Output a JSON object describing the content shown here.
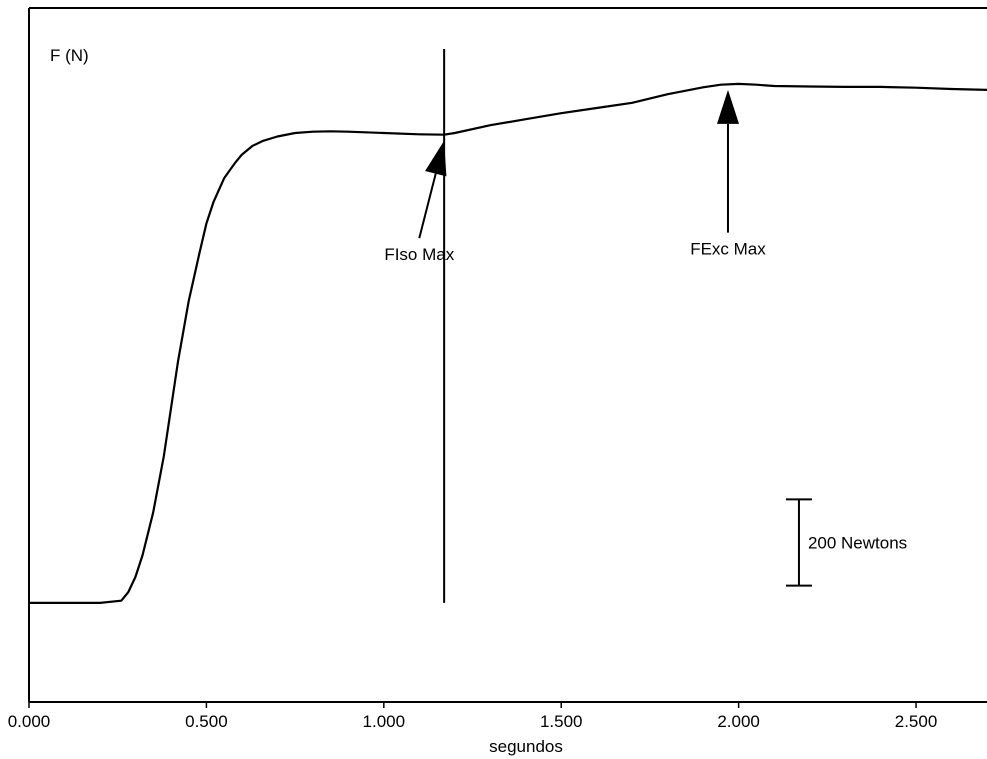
{
  "chart_data": {
    "type": "line",
    "title": "",
    "ylabel": "F (N)",
    "xlabel": "segundos",
    "xlim": [
      0,
      2.7
    ],
    "ylim": [
      -230,
      1380
    ],
    "x_ticks": [
      0,
      0.5,
      1.0,
      1.5,
      2.0,
      2.5
    ],
    "x_tick_labels": [
      "0.000",
      "0.500",
      "1.000",
      "1.500",
      "2.000",
      "2.500"
    ],
    "grid": false,
    "series": [
      {
        "values_x": [
          0.0,
          0.1,
          0.2,
          0.26,
          0.28,
          0.3,
          0.32,
          0.35,
          0.38,
          0.4,
          0.42,
          0.45,
          0.48,
          0.5,
          0.52,
          0.55,
          0.58,
          0.6,
          0.63,
          0.66,
          0.7,
          0.75,
          0.8,
          0.85,
          0.9,
          1.0,
          1.1,
          1.17,
          1.2,
          1.3,
          1.4,
          1.5,
          1.6,
          1.7,
          1.8,
          1.9,
          1.95,
          2.0,
          2.05,
          2.1,
          2.2,
          2.3,
          2.4,
          2.5,
          2.6,
          2.7
        ],
        "values_y": [
          0,
          0,
          0,
          5,
          25,
          60,
          110,
          210,
          340,
          450,
          560,
          700,
          810,
          880,
          930,
          985,
          1020,
          1040,
          1060,
          1072,
          1082,
          1090,
          1093,
          1094,
          1093,
          1090,
          1087,
          1086,
          1090,
          1108,
          1122,
          1136,
          1148,
          1160,
          1180,
          1196,
          1202,
          1204,
          1202,
          1199,
          1198,
          1197,
          1197,
          1195,
          1192,
          1190
        ]
      }
    ],
    "vertical_line": {
      "x": 1.17,
      "y_range": [
        0,
        1285
      ]
    },
    "annotations": [
      {
        "text": "FIso Max",
        "point": {
          "x": 1.17,
          "y": 1086
        },
        "label_at": {
          "x": 1.1,
          "y": 795
        }
      },
      {
        "text": "FExc Max",
        "point": {
          "x": 1.97,
          "y": 1204
        },
        "label_at": {
          "x": 1.97,
          "y": 808
        }
      }
    ],
    "scale_bar": {
      "value": 200,
      "label": "200 Newtons",
      "x": 2.17,
      "y_range": [
        40,
        240
      ]
    }
  }
}
